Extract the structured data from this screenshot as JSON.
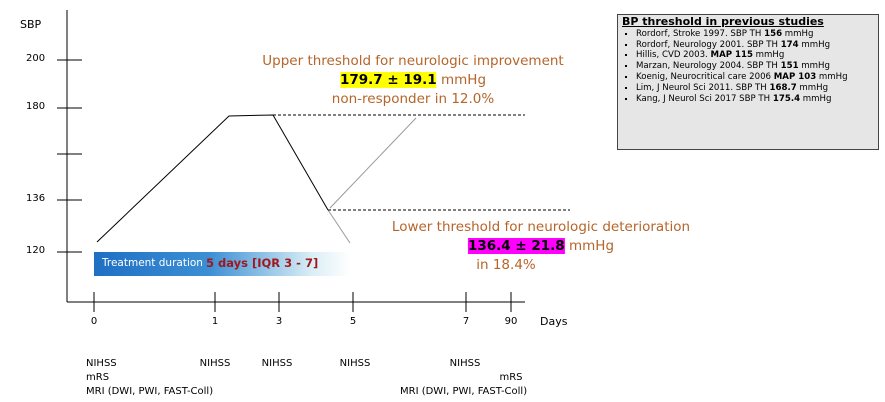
{
  "y_axis": {
    "label": "SBP",
    "ticks": [
      "200",
      "180",
      "136",
      "120"
    ]
  },
  "x_axis": {
    "label": "Days",
    "ticks": [
      "0",
      "1",
      "3",
      "5",
      "7",
      "90"
    ]
  },
  "treatment": {
    "label": "Treatment duration",
    "duration": "5 days [IQR 3 - 7]"
  },
  "upper": {
    "title": "Upper threshold for neurologic improvement",
    "value": "179.7 ± 19.1",
    "unit": " mmHg",
    "note": "non-responder in 12.0%"
  },
  "lower": {
    "title": "Lower threshold for neurologic deterioration",
    "value": "136.4 ± 21.8",
    "unit": " mmHg",
    "note": "in 18.4%"
  },
  "studies": {
    "title": "BP threshold in previous studies",
    "items": [
      {
        "pre": "Rordorf, Stroke 1997. SBP TH ",
        "bold": "156",
        "post": " mmHg"
      },
      {
        "pre": "Rordorf, Neurology 2001. SBP TH ",
        "bold": "174",
        "post": " mmHg"
      },
      {
        "pre": "Hillis, CVD 2003. ",
        "bold": "MAP 115",
        "post": " mmHg"
      },
      {
        "pre": "Marzan, Neurology 2004. SBP TH ",
        "bold": "151",
        "post": " mmHg"
      },
      {
        "pre": "Koenig, Neurocritical care 2006 ",
        "bold": "MAP 103",
        "post": " mmHg"
      },
      {
        "pre": "Lim, J Neurol Sci 2011. SBP TH ",
        "bold": "168.7",
        "post": " mmHg"
      },
      {
        "pre": "Kang, J Neurol Sci 2017 SBP TH ",
        "bold": "175.4",
        "post": " mmHg"
      }
    ]
  },
  "assessments": [
    {
      "day": "0",
      "lines": [
        "NIHSS",
        "mRS",
        "MRI (DWI, PWI, FAST-Coll)"
      ]
    },
    {
      "day": "1",
      "lines": [
        "NIHSS"
      ]
    },
    {
      "day": "3",
      "lines": [
        "NIHSS"
      ]
    },
    {
      "day": "5",
      "lines": [
        "NIHSS"
      ]
    },
    {
      "day": "7",
      "lines": [
        "NIHSS"
      ]
    },
    {
      "day": "90",
      "lines": [
        "mRS"
      ]
    },
    {
      "day": "7",
      "lines": [
        "MRI (DWI, PWI, FAST-Coll)"
      ]
    }
  ]
}
